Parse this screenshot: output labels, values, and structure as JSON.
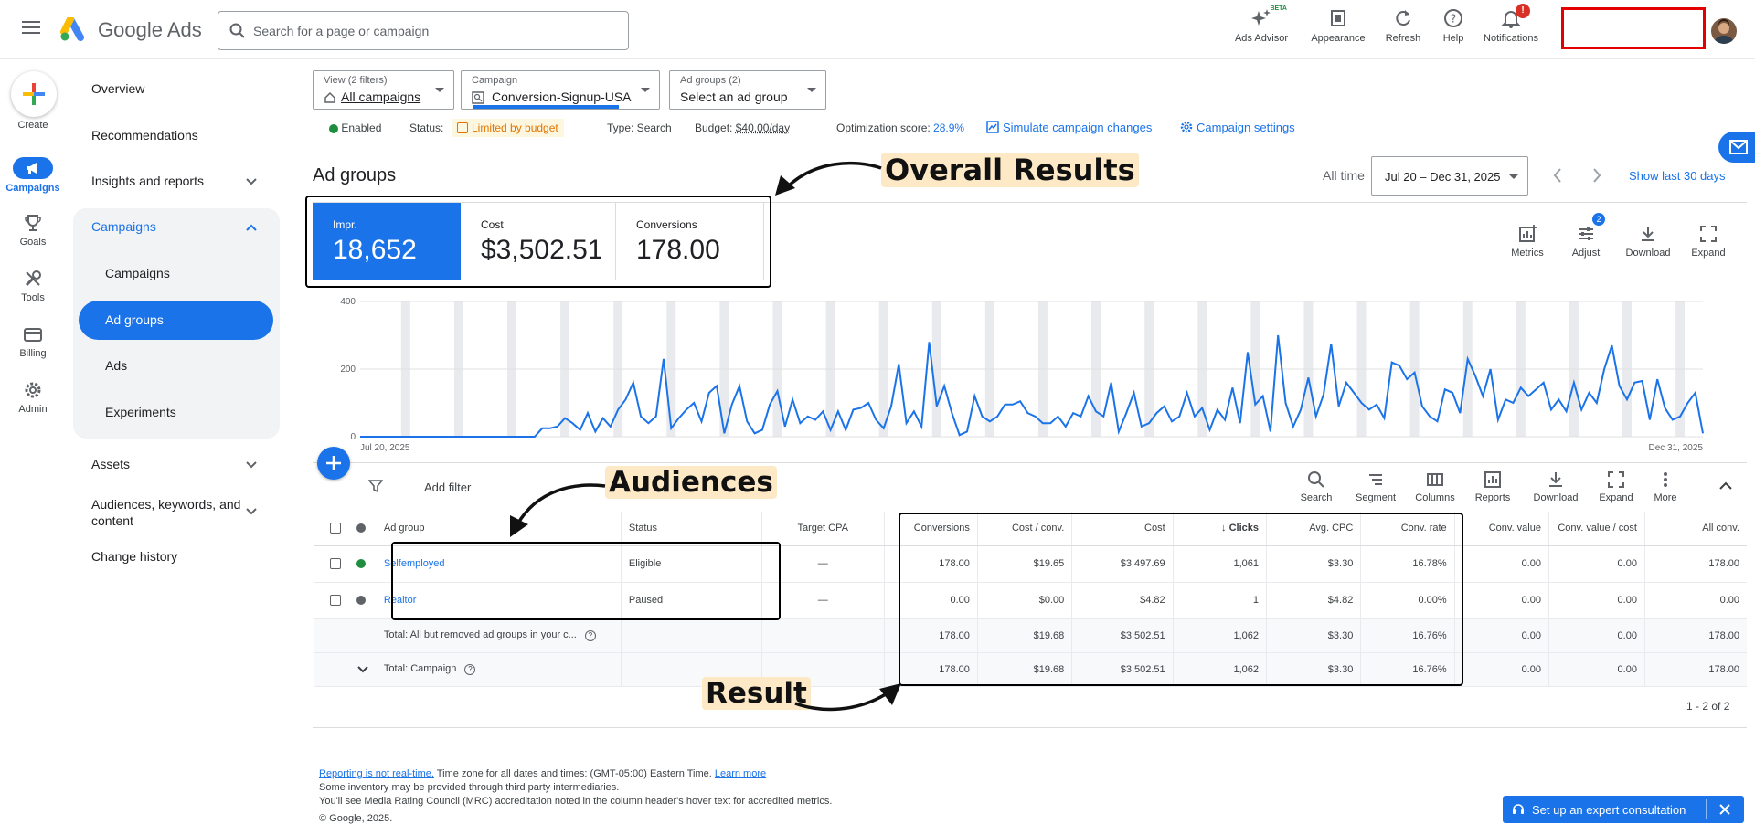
{
  "topbar": {
    "brand": "Google Ads",
    "search_placeholder": "Search for a page or campaign",
    "actions": [
      {
        "label": "Ads Advisor",
        "icon": "sparkle-icon"
      },
      {
        "label": "Appearance",
        "icon": "appearance-icon"
      },
      {
        "label": "Refresh",
        "icon": "refresh-icon"
      },
      {
        "label": "Help",
        "icon": "help-icon"
      },
      {
        "label": "Notifications",
        "icon": "bell-icon"
      }
    ],
    "beta": "BETA",
    "notif_badge": "!"
  },
  "rail": {
    "create": "Create",
    "campaigns": "Campaigns",
    "goals": "Goals",
    "tools": "Tools",
    "billing": "Billing",
    "admin": "Admin"
  },
  "nav": {
    "overview": "Overview",
    "recommendations": "Recommendations",
    "insights": "Insights and reports",
    "campaigns_group": "Campaigns",
    "sub": [
      "Campaigns",
      "Ad groups",
      "Ads",
      "Experiments"
    ],
    "assets": "Assets",
    "audiences": "Audiences, keywords, and content",
    "change_history": "Change history"
  },
  "filters": {
    "view_small": "View (2 filters)",
    "view_main": "All campaigns",
    "campaign_small": "Campaign",
    "campaign_main": "Conversion-Signup-USA",
    "adgroups_small": "Ad groups (2)",
    "adgroups_main": "Select an ad group"
  },
  "status": {
    "enabled": "Enabled",
    "status_label": "Status:",
    "status_value": "Limited by budget",
    "type": "Type: Search",
    "budget_label": "Budget:",
    "budget_value": "$40.00/day",
    "opt_label": "Optimization score:",
    "opt_value": "28.9%",
    "simulate": "Simulate campaign changes",
    "settings": "Campaign settings"
  },
  "page": {
    "title": "Ad groups",
    "all_time": "All time",
    "date_range": "Jul 20 – Dec 31, 2025",
    "show_last": "Show last 30 days"
  },
  "annotations": {
    "overall": "Overall Results",
    "audiences": "Audiences",
    "result": "Result"
  },
  "metrics": [
    {
      "label": "Impr.",
      "value": "18,652"
    },
    {
      "label": "Cost",
      "value": "$3,502.51"
    },
    {
      "label": "Conversions",
      "value": "178.00"
    }
  ],
  "chart_tools": [
    {
      "label": "Metrics",
      "icon": "metrics-icon"
    },
    {
      "label": "Adjust",
      "icon": "adjust-icon",
      "badge": "2"
    },
    {
      "label": "Download",
      "icon": "download-icon"
    },
    {
      "label": "Expand",
      "icon": "expand-icon"
    }
  ],
  "chart_data": {
    "type": "line",
    "ylim": [
      0,
      400
    ],
    "yticks": [
      "400",
      "200",
      "0"
    ],
    "x_start": "Jul 20, 2025",
    "x_end": "Dec 31, 2025",
    "series": [
      {
        "color": "#1a73e8",
        "values": [
          0,
          0,
          0,
          0,
          0,
          0,
          0,
          0,
          0,
          0,
          0,
          0,
          0,
          0,
          0,
          0,
          0,
          0,
          0,
          0,
          0,
          0,
          0,
          0,
          25,
          25,
          30,
          55,
          40,
          20,
          70,
          15,
          55,
          30,
          80,
          110,
          160,
          60,
          40,
          60,
          230,
          25,
          55,
          80,
          100,
          45,
          130,
          150,
          10,
          95,
          150,
          45,
          10,
          20,
          95,
          135,
          30,
          110,
          40,
          60,
          50,
          75,
          20,
          75,
          20,
          80,
          85,
          100,
          50,
          25,
          90,
          215,
          40,
          75,
          30,
          280,
          90,
          150,
          70,
          5,
          15,
          120,
          60,
          45,
          60,
          95,
          95,
          105,
          70,
          60,
          40,
          40,
          60,
          30,
          70,
          60,
          120,
          75,
          60,
          160,
          15,
          70,
          130,
          30,
          40,
          70,
          90,
          45,
          60,
          130,
          60,
          85,
          20,
          80,
          50,
          145,
          40,
          250,
          95,
          120,
          15,
          300,
          100,
          30,
          80,
          175,
          60,
          125,
          275,
          90,
          160,
          130,
          100,
          80,
          95,
          55,
          220,
          210,
          170,
          190,
          90,
          60,
          45,
          140,
          130,
          70,
          230,
          180,
          120,
          200,
          50,
          110,
          100,
          145,
          120,
          140,
          160,
          80,
          110,
          75,
          160,
          80,
          130,
          100,
          200,
          270,
          150,
          110,
          160,
          165,
          50,
          170,
          85,
          50,
          60,
          100,
          130,
          10
        ]
      }
    ]
  },
  "table_toolbar": {
    "add_filter": "Add filter",
    "tools": [
      {
        "label": "Search",
        "icon": "search-icon"
      },
      {
        "label": "Segment",
        "icon": "segment-icon"
      },
      {
        "label": "Columns",
        "icon": "columns-icon"
      },
      {
        "label": "Reports",
        "icon": "reports-icon"
      },
      {
        "label": "Download",
        "icon": "download-icon"
      },
      {
        "label": "Expand",
        "icon": "expand-icon"
      },
      {
        "label": "More",
        "icon": "more-vert-icon"
      }
    ]
  },
  "table": {
    "columns": [
      "Ad group",
      "Status",
      "Target CPA",
      "Conversions",
      "Cost / conv.",
      "Cost",
      "Clicks",
      "Avg. CPC",
      "Conv. rate",
      "Conv. value",
      "Conv. value / cost",
      "All conv."
    ],
    "rows": [
      {
        "name": "Selfemployed",
        "status": "Eligible",
        "dot": "#1e8e3e",
        "cells": [
          "—",
          "178.00",
          "$19.65",
          "$3,497.69",
          "1,061",
          "$3.30",
          "16.78%",
          "0.00",
          "0.00",
          "178.00"
        ]
      },
      {
        "name": "Realtor",
        "status": "Paused",
        "dot": "#5f6368",
        "cells": [
          "—",
          "0.00",
          "$0.00",
          "$4.82",
          "1",
          "$4.82",
          "0.00%",
          "0.00",
          "0.00",
          "0.00"
        ]
      }
    ],
    "totals": [
      {
        "label": "Total: All but removed ad groups in your c...",
        "cells": [
          "178.00",
          "$19.68",
          "$3,502.51",
          "1,062",
          "$3.30",
          "16.76%",
          "0.00",
          "0.00",
          "178.00"
        ]
      },
      {
        "label": "Total: Campaign",
        "cells": [
          "178.00",
          "$19.68",
          "$3,502.51",
          "1,062",
          "$3.30",
          "16.76%",
          "0.00",
          "0.00",
          "178.00"
        ]
      }
    ],
    "pagination": "1 - 2 of 2"
  },
  "footer": {
    "line1_link": "Reporting is not real-time.",
    "line1_text": " Time zone for all dates and times: (GMT-05:00) Eastern Time. ",
    "line1_link2": "Learn more",
    "line2": "Some inventory may be provided through third party intermediaries.",
    "line3": "You'll see Media Rating Council (MRC) accreditation noted in the column header's hover text for accredited metrics.",
    "line4": "© Google, 2025."
  },
  "consult": {
    "label": "Set up an expert consultation"
  }
}
